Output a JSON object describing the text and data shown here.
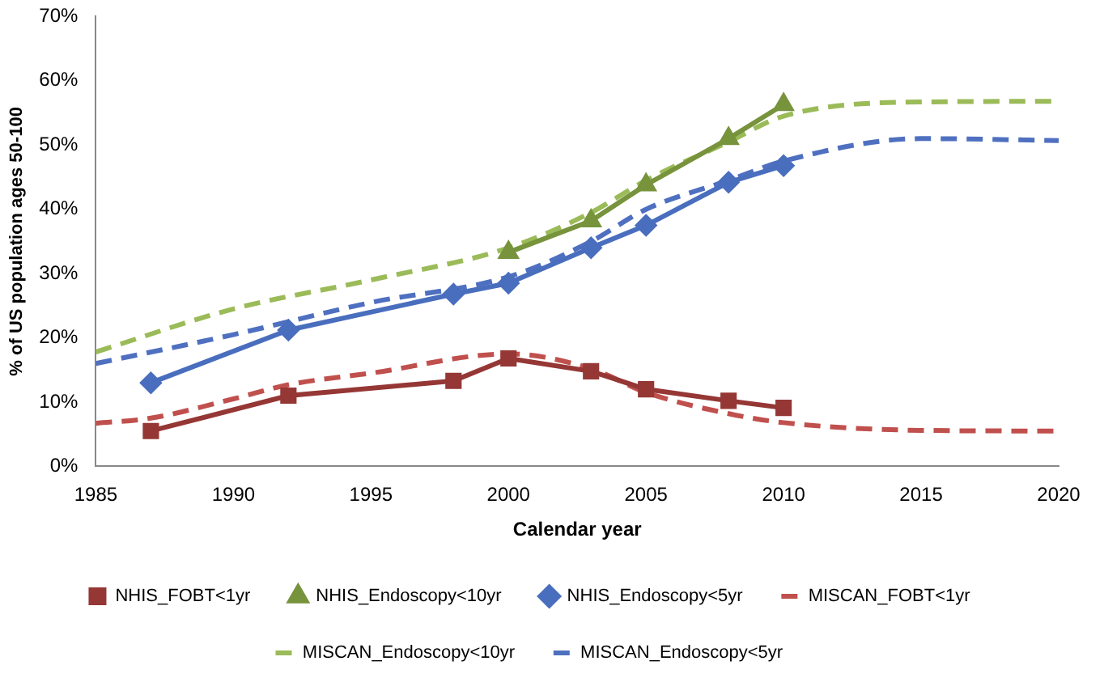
{
  "chart_data": {
    "type": "line",
    "xlabel": "Calendar year",
    "ylabel": "% of US population ages 50-100",
    "xlim": [
      1985,
      2020
    ],
    "xticks": [
      1985,
      1990,
      1995,
      2000,
      2005,
      2010,
      2015,
      2020
    ],
    "ylim": [
      0,
      70
    ],
    "yticks": [
      {
        "value": 0,
        "label": "0%"
      },
      {
        "value": 10,
        "label": "10%"
      },
      {
        "value": 20,
        "label": "20%"
      },
      {
        "value": 30,
        "label": "30%"
      },
      {
        "value": 40,
        "label": "40%"
      },
      {
        "value": 50,
        "label": "50%"
      },
      {
        "value": 60,
        "label": "60%"
      },
      {
        "value": 70,
        "label": "70%"
      }
    ],
    "grid": false,
    "legend": "bottom",
    "series": [
      {
        "name": "NHIS_FOBT<1yr",
        "color": "#953735",
        "marker": "square",
        "line_style": "solid",
        "x": [
          1987,
          1992,
          1998,
          2000,
          2003,
          2005,
          2008,
          2010
        ],
        "values": [
          5.5,
          11,
          13.3,
          16.8,
          14.8,
          12,
          10.2,
          9.1
        ]
      },
      {
        "name": "NHIS_Endoscopy<10yr",
        "color": "#77933c",
        "marker": "triangle",
        "line_style": "solid",
        "x": [
          2000,
          2003,
          2005,
          2008,
          2010
        ],
        "values": [
          33.3,
          38.2,
          43.8,
          51,
          56.3
        ]
      },
      {
        "name": "NHIS_Endoscopy<5yr",
        "color": "#4a6ebe",
        "marker": "diamond",
        "line_style": "solid",
        "x": [
          1987,
          1992,
          1998,
          2000,
          2003,
          2005,
          2008,
          2010
        ],
        "values": [
          13,
          21.2,
          26.8,
          28.5,
          34,
          37.5,
          44.2,
          46.8
        ]
      },
      {
        "name": "MISCAN_FOBT<1yr",
        "color": "#c0504d",
        "marker": "none",
        "line_style": "dashed",
        "x": [
          1985,
          1987,
          1990,
          1992,
          1995,
          2000,
          2003,
          2005,
          2008,
          2010,
          2015,
          2020
        ],
        "values": [
          6.7,
          7.5,
          10.5,
          12.7,
          14.5,
          17.5,
          15.2,
          11.5,
          8.2,
          6.8,
          5.6,
          5.5
        ]
      },
      {
        "name": "MISCAN_Endoscopy<10yr",
        "color": "#9bbb59",
        "marker": "none",
        "line_style": "dashed",
        "x": [
          1985,
          1990,
          1995,
          2000,
          2003,
          2005,
          2008,
          2010,
          2015,
          2020
        ],
        "values": [
          17.8,
          24.5,
          29,
          34,
          39.5,
          44.5,
          50.5,
          54.5,
          56.7,
          56.8
        ]
      },
      {
        "name": "MISCAN_Endoscopy<5yr",
        "color": "#4f70c0",
        "marker": "none",
        "line_style": "dashed",
        "x": [
          1985,
          1990,
          1995,
          2000,
          2003,
          2005,
          2008,
          2010,
          2015,
          2020
        ],
        "values": [
          16,
          20.5,
          25.5,
          29.5,
          35,
          40,
          44.5,
          47.5,
          51,
          50.7
        ]
      }
    ]
  }
}
